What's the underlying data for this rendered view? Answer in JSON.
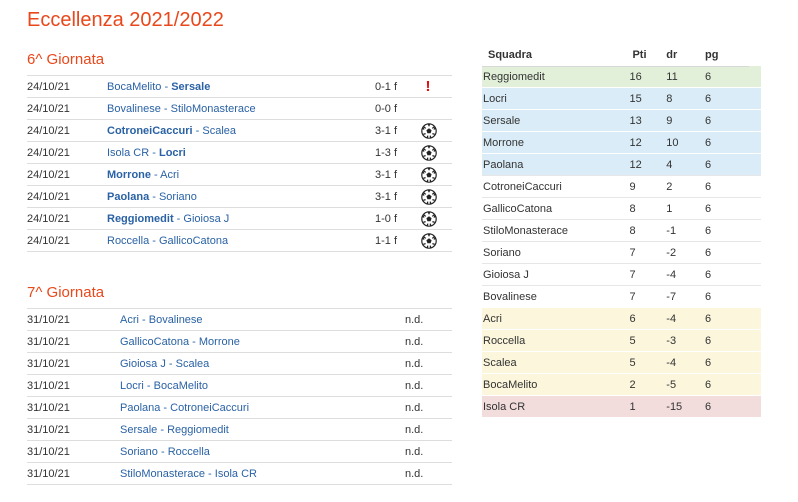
{
  "page_title": "Eccellenza 2021/2022",
  "rounds": [
    {
      "title": "6^ Giornata",
      "matches": [
        {
          "date": "24/10/21",
          "home": "BocaMelito",
          "away": "Sersale",
          "winner": "away",
          "score": "0-1 f",
          "icon": "alert-icon"
        },
        {
          "date": "24/10/21",
          "home": "Bovalinese",
          "away": "StiloMonasterace",
          "winner": "none",
          "score": "0-0 f",
          "icon": "none"
        },
        {
          "date": "24/10/21",
          "home": "CotroneiCaccuri",
          "away": "Scalea",
          "winner": "home",
          "score": "3-1 f",
          "icon": "soccer-ball-icon"
        },
        {
          "date": "24/10/21",
          "home": "Isola CR",
          "away": "Locri",
          "winner": "away",
          "score": "1-3 f",
          "icon": "soccer-ball-icon"
        },
        {
          "date": "24/10/21",
          "home": "Morrone",
          "away": "Acri",
          "winner": "home",
          "score": "3-1 f",
          "icon": "soccer-ball-icon"
        },
        {
          "date": "24/10/21",
          "home": "Paolana",
          "away": "Soriano",
          "winner": "home",
          "score": "3-1 f",
          "icon": "soccer-ball-icon"
        },
        {
          "date": "24/10/21",
          "home": "Reggiomedit",
          "away": "Gioiosa J",
          "winner": "home",
          "score": "1-0 f",
          "icon": "soccer-ball-icon"
        },
        {
          "date": "24/10/21",
          "home": "Roccella",
          "away": "GallicoCatona",
          "winner": "none",
          "score": "1-1 f",
          "icon": "soccer-ball-icon"
        }
      ]
    },
    {
      "title": "7^ Giornata",
      "matches": [
        {
          "date": "31/10/21",
          "home": "Acri",
          "away": "Bovalinese",
          "score": "n.d."
        },
        {
          "date": "31/10/21",
          "home": "GallicoCatona",
          "away": "Morrone",
          "score": "n.d."
        },
        {
          "date": "31/10/21",
          "home": "Gioiosa J",
          "away": "Scalea",
          "score": "n.d."
        },
        {
          "date": "31/10/21",
          "home": "Locri",
          "away": "BocaMelito",
          "score": "n.d."
        },
        {
          "date": "31/10/21",
          "home": "Paolana",
          "away": "CotroneiCaccuri",
          "score": "n.d."
        },
        {
          "date": "31/10/21",
          "home": "Sersale",
          "away": "Reggiomedit",
          "score": "n.d."
        },
        {
          "date": "31/10/21",
          "home": "Soriano",
          "away": "Roccella",
          "score": "n.d."
        },
        {
          "date": "31/10/21",
          "home": "StiloMonasterace",
          "away": "Isola CR",
          "score": "n.d."
        }
      ]
    }
  ],
  "standings": {
    "headers": {
      "team": "Squadra",
      "pts": "Pti",
      "dr": "dr",
      "pg": "pg"
    },
    "zone_colors": {
      "green": "#e2f0da",
      "blue": "#d9ecf7",
      "yellow": "#fbf6dc",
      "red": "#f2dcdc"
    },
    "rows": [
      {
        "team": "Reggiomedit",
        "pts": "16",
        "dr": "11",
        "pg": "6",
        "zone": "green"
      },
      {
        "team": "Locri",
        "pts": "15",
        "dr": "8",
        "pg": "6",
        "zone": "blue"
      },
      {
        "team": "Sersale",
        "pts": "13",
        "dr": "9",
        "pg": "6",
        "zone": "blue"
      },
      {
        "team": "Morrone",
        "pts": "12",
        "dr": "10",
        "pg": "6",
        "zone": "blue"
      },
      {
        "team": "Paolana",
        "pts": "12",
        "dr": "4",
        "pg": "6",
        "zone": "blue"
      },
      {
        "team": "CotroneiCaccuri",
        "pts": "9",
        "dr": "2",
        "pg": "6",
        "zone": "none"
      },
      {
        "team": "GallicoCatona",
        "pts": "8",
        "dr": "1",
        "pg": "6",
        "zone": "none"
      },
      {
        "team": "StiloMonasterace",
        "pts": "8",
        "dr": "-1",
        "pg": "6",
        "zone": "none"
      },
      {
        "team": "Soriano",
        "pts": "7",
        "dr": "-2",
        "pg": "6",
        "zone": "none"
      },
      {
        "team": "Gioiosa J",
        "pts": "7",
        "dr": "-4",
        "pg": "6",
        "zone": "none"
      },
      {
        "team": "Bovalinese",
        "pts": "7",
        "dr": "-7",
        "pg": "6",
        "zone": "none"
      },
      {
        "team": "Acri",
        "pts": "6",
        "dr": "-4",
        "pg": "6",
        "zone": "yellow"
      },
      {
        "team": "Roccella",
        "pts": "5",
        "dr": "-3",
        "pg": "6",
        "zone": "yellow"
      },
      {
        "team": "Scalea",
        "pts": "5",
        "dr": "-4",
        "pg": "6",
        "zone": "yellow"
      },
      {
        "team": "BocaMelito",
        "pts": "2",
        "dr": "-5",
        "pg": "6",
        "zone": "yellow"
      },
      {
        "team": "Isola CR",
        "pts": "1",
        "dr": "-15",
        "pg": "6",
        "zone": "red"
      }
    ]
  }
}
